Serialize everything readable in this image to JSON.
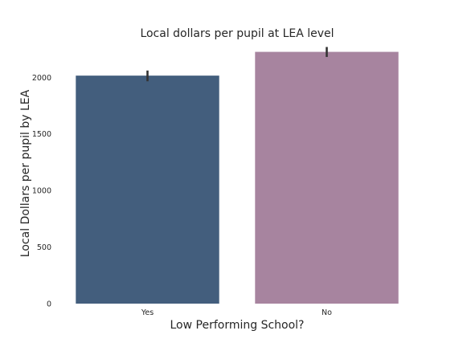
{
  "chart_data": {
    "type": "bar",
    "title": "Local dollars per pupil at LEA level",
    "xlabel": "Low Performing School?",
    "ylabel": "Local Dollars per pupil by LEA",
    "categories": [
      "Yes",
      "No"
    ],
    "values": [
      2015,
      2225
    ],
    "error_low": [
      1965,
      2180
    ],
    "error_high": [
      2060,
      2268
    ],
    "colors": [
      "#435e7d",
      "#a7849f"
    ],
    "error_color": "#333333",
    "ylim": [
      0,
      2300
    ],
    "yticks": [
      0,
      500,
      1000,
      1500,
      2000
    ],
    "ytick_labels": [
      "0",
      "500",
      "1000",
      "1500",
      "2000"
    ],
    "grid": false,
    "legend": "none"
  }
}
